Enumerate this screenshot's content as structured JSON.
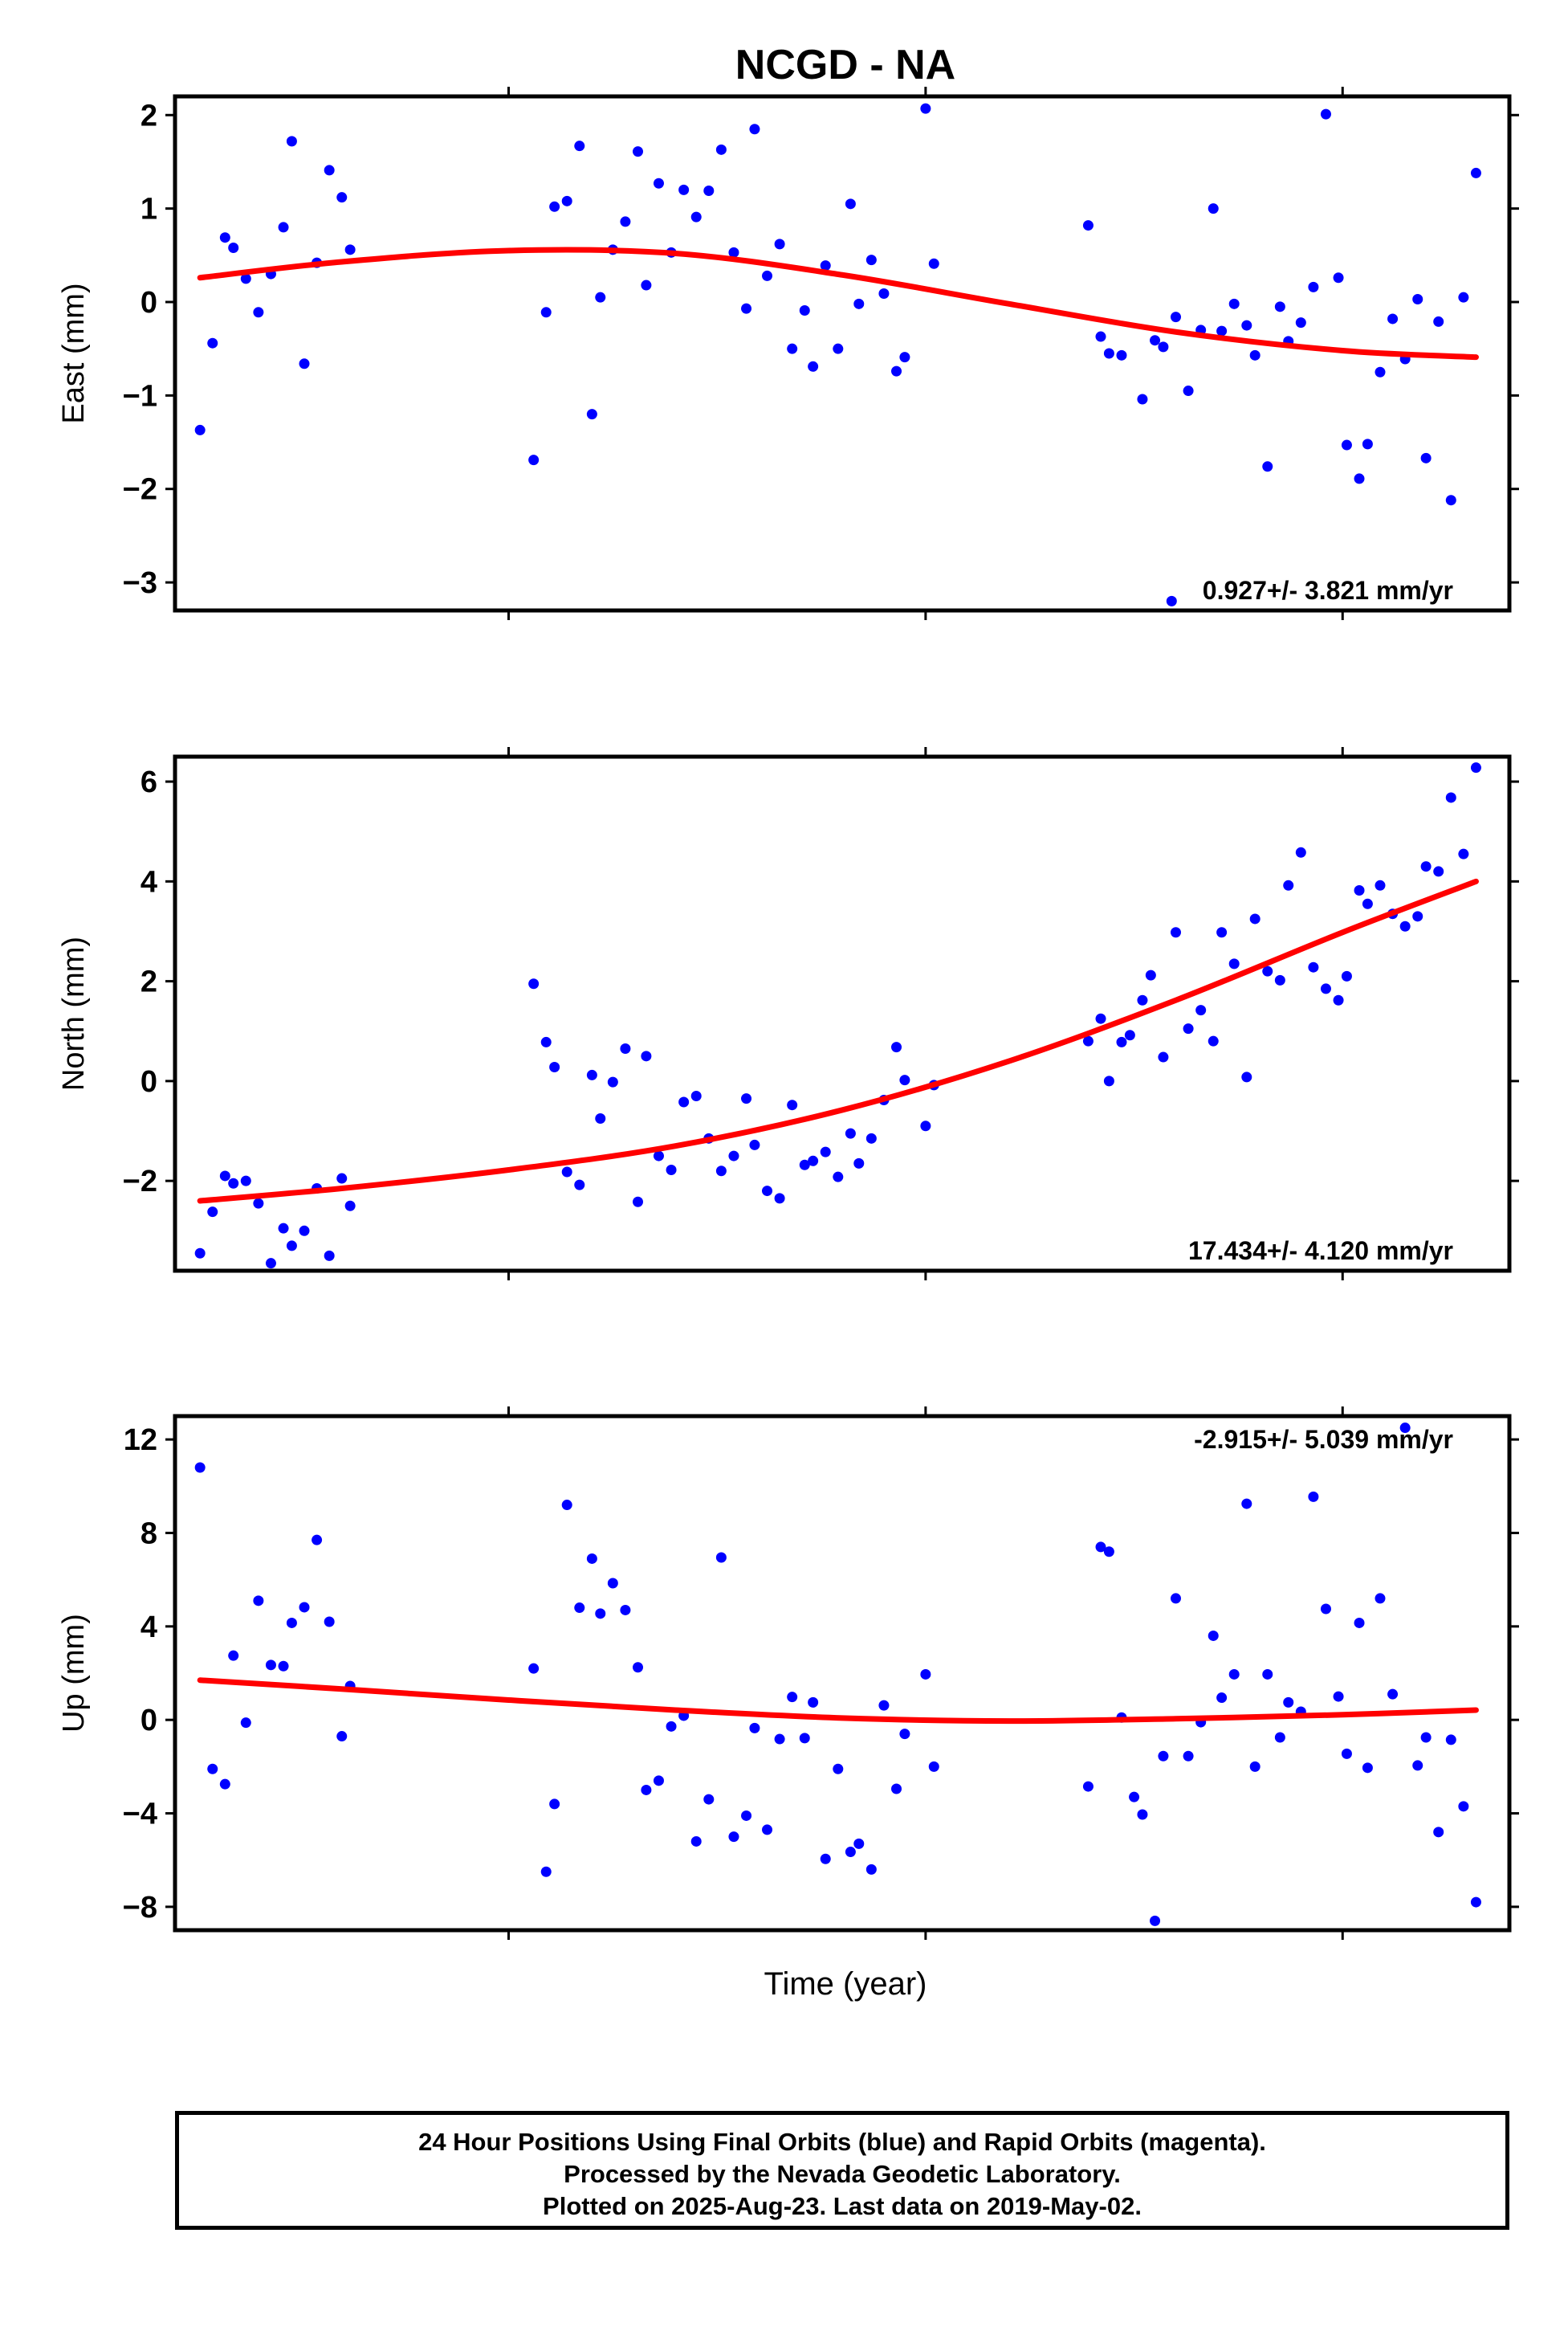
{
  "title": "NCGD - NA",
  "xlabel": "Time (year)",
  "colors": {
    "final_orbits": "#0000ff",
    "fit": "#ff0000",
    "axis": "#000000"
  },
  "footer": {
    "line1": "24 Hour Positions Using Final Orbits (blue) and Rapid Orbits (magenta).",
    "line2": "Processed by the Nevada Geodetic Laboratory.",
    "line3": "Plotted on 2025-Aug-23. Last data on 2019-May-02."
  },
  "chart_data": [
    {
      "type": "scatter",
      "name": "east",
      "ylabel": "East (mm)",
      "rate_text": "0.927+/- 3.821 mm/yr",
      "xlim": [
        2016.0,
        2019.2
      ],
      "ylim": [
        -3.3,
        2.2
      ],
      "yticks": [
        2,
        1,
        0,
        -1,
        -2,
        -3
      ],
      "ytick_labels": [
        "2",
        "1",
        "0",
        "−1",
        "−2",
        "−3"
      ],
      "xticks": [
        2016.8,
        2017.8,
        2018.8
      ],
      "points": [
        [
          2016.06,
          -1.37
        ],
        [
          2016.09,
          -0.44
        ],
        [
          2016.12,
          0.69
        ],
        [
          2016.14,
          0.58
        ],
        [
          2016.17,
          0.25
        ],
        [
          2016.2,
          -0.11
        ],
        [
          2016.23,
          0.3
        ],
        [
          2016.26,
          0.8
        ],
        [
          2016.28,
          1.72
        ],
        [
          2016.31,
          -0.66
        ],
        [
          2016.34,
          0.42
        ],
        [
          2016.37,
          1.41
        ],
        [
          2016.4,
          1.12
        ],
        [
          2016.42,
          0.56
        ],
        [
          2016.86,
          -1.69
        ],
        [
          2016.89,
          -0.11
        ],
        [
          2016.91,
          1.02
        ],
        [
          2016.94,
          1.08
        ],
        [
          2016.97,
          1.67
        ],
        [
          2017.0,
          -1.2
        ],
        [
          2017.02,
          0.05
        ],
        [
          2017.05,
          0.56
        ],
        [
          2017.08,
          0.86
        ],
        [
          2017.11,
          1.61
        ],
        [
          2017.13,
          0.18
        ],
        [
          2017.16,
          1.27
        ],
        [
          2017.19,
          0.53
        ],
        [
          2017.22,
          1.2
        ],
        [
          2017.25,
          0.91
        ],
        [
          2017.28,
          1.19
        ],
        [
          2017.31,
          1.63
        ],
        [
          2017.34,
          0.53
        ],
        [
          2017.37,
          -0.07
        ],
        [
          2017.39,
          1.85
        ],
        [
          2017.42,
          0.28
        ],
        [
          2017.45,
          0.62
        ],
        [
          2017.48,
          -0.5
        ],
        [
          2017.51,
          -0.09
        ],
        [
          2017.53,
          -0.69
        ],
        [
          2017.56,
          0.39
        ],
        [
          2017.59,
          -0.5
        ],
        [
          2017.62,
          1.05
        ],
        [
          2017.64,
          -0.02
        ],
        [
          2017.67,
          0.45
        ],
        [
          2017.7,
          0.09
        ],
        [
          2017.73,
          -0.74
        ],
        [
          2017.75,
          -0.59
        ],
        [
          2017.8,
          2.07
        ],
        [
          2017.82,
          0.41
        ],
        [
          2018.19,
          0.82
        ],
        [
          2018.22,
          -0.37
        ],
        [
          2018.24,
          -0.55
        ],
        [
          2018.27,
          -0.57
        ],
        [
          2018.32,
          -1.04
        ],
        [
          2018.35,
          -0.41
        ],
        [
          2018.37,
          -0.48
        ],
        [
          2018.4,
          -0.16
        ],
        [
          2018.43,
          -0.95
        ],
        [
          2018.46,
          -0.3
        ],
        [
          2018.49,
          1.0
        ],
        [
          2018.51,
          -0.31
        ],
        [
          2018.54,
          -0.02
        ],
        [
          2018.57,
          -0.25
        ],
        [
          2018.59,
          -0.57
        ],
        [
          2018.62,
          -1.76
        ],
        [
          2018.65,
          -0.05
        ],
        [
          2018.67,
          -0.42
        ],
        [
          2018.7,
          -0.22
        ],
        [
          2018.73,
          0.16
        ],
        [
          2018.76,
          2.01
        ],
        [
          2018.79,
          0.26
        ],
        [
          2018.81,
          -1.53
        ],
        [
          2018.84,
          -1.89
        ],
        [
          2018.86,
          -1.52
        ],
        [
          2018.89,
          -0.75
        ],
        [
          2018.92,
          -0.18
        ],
        [
          2018.95,
          -0.61
        ],
        [
          2018.98,
          0.03
        ],
        [
          2019.0,
          -1.67
        ],
        [
          2019.03,
          -0.21
        ],
        [
          2019.06,
          -2.12
        ],
        [
          2019.09,
          0.05
        ],
        [
          2019.12,
          1.38
        ],
        [
          2018.39,
          -3.2
        ]
      ],
      "trend": [
        [
          2016.06,
          0.26
        ],
        [
          2016.4,
          0.43
        ],
        [
          2016.8,
          0.55
        ],
        [
          2017.2,
          0.52
        ],
        [
          2017.6,
          0.29
        ],
        [
          2018.0,
          -0.02
        ],
        [
          2018.4,
          -0.32
        ],
        [
          2018.8,
          -0.52
        ],
        [
          2019.12,
          -0.59
        ]
      ]
    },
    {
      "type": "scatter",
      "name": "north",
      "ylabel": "North (mm)",
      "rate_text": "17.434+/- 4.120 mm/yr",
      "xlim": [
        2016.0,
        2019.2
      ],
      "ylim": [
        -3.8,
        6.5
      ],
      "yticks": [
        6,
        4,
        2,
        0,
        -2
      ],
      "ytick_labels": [
        "6",
        "4",
        "2",
        "0",
        "−2"
      ],
      "xticks": [
        2016.8,
        2017.8,
        2018.8
      ],
      "points": [
        [
          2016.06,
          -3.45
        ],
        [
          2016.09,
          -2.62
        ],
        [
          2016.12,
          -1.9
        ],
        [
          2016.14,
          -2.05
        ],
        [
          2016.17,
          -2.0
        ],
        [
          2016.2,
          -2.45
        ],
        [
          2016.23,
          -3.65
        ],
        [
          2016.26,
          -2.95
        ],
        [
          2016.28,
          -3.3
        ],
        [
          2016.31,
          -3.0
        ],
        [
          2016.34,
          -2.15
        ],
        [
          2016.37,
          -3.5
        ],
        [
          2016.4,
          -1.95
        ],
        [
          2016.42,
          -2.5
        ],
        [
          2016.86,
          1.95
        ],
        [
          2016.89,
          0.78
        ],
        [
          2016.91,
          0.28
        ],
        [
          2016.94,
          -1.82
        ],
        [
          2016.97,
          -2.08
        ],
        [
          2017.0,
          0.12
        ],
        [
          2017.02,
          -0.75
        ],
        [
          2017.05,
          -0.02
        ],
        [
          2017.08,
          0.65
        ],
        [
          2017.11,
          -2.42
        ],
        [
          2017.13,
          0.5
        ],
        [
          2017.16,
          -1.5
        ],
        [
          2017.19,
          -1.78
        ],
        [
          2017.22,
          -0.42
        ],
        [
          2017.25,
          -0.3
        ],
        [
          2017.28,
          -1.15
        ],
        [
          2017.31,
          -1.8
        ],
        [
          2017.34,
          -1.5
        ],
        [
          2017.37,
          -0.35
        ],
        [
          2017.39,
          -1.28
        ],
        [
          2017.42,
          -2.2
        ],
        [
          2017.45,
          -2.35
        ],
        [
          2017.48,
          -0.48
        ],
        [
          2017.51,
          -1.68
        ],
        [
          2017.53,
          -1.6
        ],
        [
          2017.56,
          -1.42
        ],
        [
          2017.59,
          -1.92
        ],
        [
          2017.62,
          -1.05
        ],
        [
          2017.64,
          -1.65
        ],
        [
          2017.67,
          -1.15
        ],
        [
          2017.7,
          -0.38
        ],
        [
          2017.73,
          0.68
        ],
        [
          2017.75,
          0.02
        ],
        [
          2017.8,
          -0.9
        ],
        [
          2017.82,
          -0.08
        ],
        [
          2018.19,
          0.8
        ],
        [
          2018.22,
          1.25
        ],
        [
          2018.24,
          0.0
        ],
        [
          2018.27,
          0.78
        ],
        [
          2018.29,
          0.92
        ],
        [
          2018.32,
          1.62
        ],
        [
          2018.34,
          2.12
        ],
        [
          2018.37,
          0.48
        ],
        [
          2018.4,
          2.98
        ],
        [
          2018.43,
          1.05
        ],
        [
          2018.46,
          1.42
        ],
        [
          2018.49,
          0.8
        ],
        [
          2018.51,
          2.98
        ],
        [
          2018.54,
          2.35
        ],
        [
          2018.57,
          0.08
        ],
        [
          2018.59,
          3.25
        ],
        [
          2018.62,
          2.2
        ],
        [
          2018.65,
          2.02
        ],
        [
          2018.67,
          3.92
        ],
        [
          2018.7,
          4.58
        ],
        [
          2018.73,
          2.28
        ],
        [
          2018.76,
          1.85
        ],
        [
          2018.79,
          1.62
        ],
        [
          2018.81,
          2.1
        ],
        [
          2018.84,
          3.82
        ],
        [
          2018.86,
          3.55
        ],
        [
          2018.89,
          3.92
        ],
        [
          2018.92,
          3.35
        ],
        [
          2018.95,
          3.1
        ],
        [
          2018.98,
          3.3
        ],
        [
          2019.0,
          4.3
        ],
        [
          2019.03,
          4.2
        ],
        [
          2019.06,
          5.68
        ],
        [
          2019.09,
          4.55
        ],
        [
          2019.12,
          6.28
        ]
      ],
      "trend": [
        [
          2016.06,
          -2.4
        ],
        [
          2016.4,
          -2.15
        ],
        [
          2016.8,
          -1.78
        ],
        [
          2017.2,
          -1.3
        ],
        [
          2017.6,
          -0.58
        ],
        [
          2018.0,
          0.4
        ],
        [
          2018.4,
          1.62
        ],
        [
          2018.8,
          2.98
        ],
        [
          2019.12,
          4.0
        ]
      ]
    },
    {
      "type": "scatter",
      "name": "up",
      "ylabel": "Up (mm)",
      "rate_text": "-2.915+/- 5.039 mm/yr",
      "xlim": [
        2016.0,
        2019.2
      ],
      "ylim": [
        -9.0,
        13.0
      ],
      "yticks": [
        12,
        8,
        4,
        0,
        -4,
        -8
      ],
      "ytick_labels": [
        "12",
        "8",
        "4",
        "0",
        "−4",
        "−8"
      ],
      "xticks": [
        2016.8,
        2017.8,
        2018.8
      ],
      "points": [
        [
          2016.06,
          10.8
        ],
        [
          2016.09,
          -2.1
        ],
        [
          2016.12,
          -2.75
        ],
        [
          2016.14,
          2.75
        ],
        [
          2016.17,
          -0.12
        ],
        [
          2016.2,
          5.1
        ],
        [
          2016.23,
          2.35
        ],
        [
          2016.26,
          2.3
        ],
        [
          2016.28,
          4.15
        ],
        [
          2016.31,
          4.82
        ],
        [
          2016.34,
          7.7
        ],
        [
          2016.37,
          4.2
        ],
        [
          2016.4,
          -0.7
        ],
        [
          2016.42,
          1.45
        ],
        [
          2016.86,
          2.2
        ],
        [
          2016.89,
          -6.5
        ],
        [
          2016.91,
          -3.6
        ],
        [
          2016.94,
          9.2
        ],
        [
          2016.97,
          4.8
        ],
        [
          2017.0,
          6.9
        ],
        [
          2017.02,
          4.55
        ],
        [
          2017.05,
          5.85
        ],
        [
          2017.08,
          4.7
        ],
        [
          2017.11,
          2.25
        ],
        [
          2017.13,
          -3.0
        ],
        [
          2017.16,
          -2.6
        ],
        [
          2017.19,
          -0.28
        ],
        [
          2017.22,
          0.18
        ],
        [
          2017.25,
          -5.2
        ],
        [
          2017.28,
          -3.4
        ],
        [
          2017.31,
          6.95
        ],
        [
          2017.34,
          -5.0
        ],
        [
          2017.37,
          -4.1
        ],
        [
          2017.39,
          -0.35
        ],
        [
          2017.42,
          -4.7
        ],
        [
          2017.45,
          -0.82
        ],
        [
          2017.48,
          0.98
        ],
        [
          2017.51,
          -0.78
        ],
        [
          2017.53,
          0.75
        ],
        [
          2017.56,
          -5.95
        ],
        [
          2017.59,
          -2.1
        ],
        [
          2017.62,
          -5.65
        ],
        [
          2017.64,
          -5.3
        ],
        [
          2017.67,
          -6.4
        ],
        [
          2017.7,
          0.62
        ],
        [
          2017.73,
          -2.95
        ],
        [
          2017.75,
          -0.6
        ],
        [
          2017.8,
          1.95
        ],
        [
          2017.82,
          -2.0
        ],
        [
          2018.19,
          -2.85
        ],
        [
          2018.22,
          7.4
        ],
        [
          2018.24,
          7.2
        ],
        [
          2018.27,
          0.1
        ],
        [
          2018.3,
          -3.3
        ],
        [
          2018.32,
          -4.05
        ],
        [
          2018.35,
          -8.6
        ],
        [
          2018.37,
          -1.55
        ],
        [
          2018.4,
          5.2
        ],
        [
          2018.43,
          -1.55
        ],
        [
          2018.46,
          -0.1
        ],
        [
          2018.49,
          3.6
        ],
        [
          2018.51,
          0.95
        ],
        [
          2018.54,
          1.95
        ],
        [
          2018.57,
          9.25
        ],
        [
          2018.59,
          -2.0
        ],
        [
          2018.62,
          1.95
        ],
        [
          2018.65,
          -0.75
        ],
        [
          2018.67,
          0.75
        ],
        [
          2018.7,
          0.35
        ],
        [
          2018.73,
          9.55
        ],
        [
          2018.76,
          4.75
        ],
        [
          2018.79,
          1.0
        ],
        [
          2018.81,
          -1.45
        ],
        [
          2018.84,
          4.15
        ],
        [
          2018.86,
          -2.05
        ],
        [
          2018.89,
          5.2
        ],
        [
          2018.92,
          1.1
        ],
        [
          2018.95,
          12.5
        ],
        [
          2018.98,
          -1.95
        ],
        [
          2019.0,
          -0.75
        ],
        [
          2019.03,
          -4.8
        ],
        [
          2019.06,
          -0.85
        ],
        [
          2019.09,
          -3.7
        ],
        [
          2019.12,
          -7.8
        ]
      ],
      "trend": [
        [
          2016.06,
          1.7
        ],
        [
          2016.4,
          1.32
        ],
        [
          2016.8,
          0.85
        ],
        [
          2017.2,
          0.42
        ],
        [
          2017.6,
          0.08
        ],
        [
          2018.0,
          -0.05
        ],
        [
          2018.4,
          0.05
        ],
        [
          2018.8,
          0.22
        ],
        [
          2019.12,
          0.42
        ]
      ]
    }
  ]
}
